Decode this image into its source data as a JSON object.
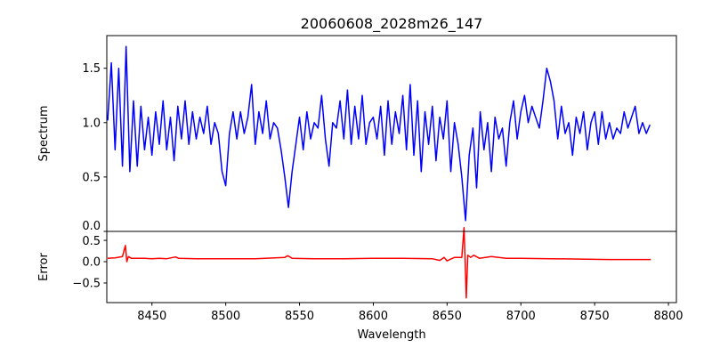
{
  "chart_data": [
    {
      "type": "line",
      "title": "20060608_2028m26_147",
      "xlabel": "",
      "ylabel": "Spectrum",
      "xlim": [
        8419.4,
        8805.4
      ],
      "ylim": [
        0,
        1.8
      ],
      "xticks": [
        8450,
        8500,
        8550,
        8600,
        8650,
        8700,
        8750,
        8800
      ],
      "yticks": [
        0.0,
        0.5,
        1.0,
        1.5
      ],
      "ytick_labels": [
        "0.0",
        "0.5",
        "1.0",
        "1.5"
      ],
      "grid": false,
      "color": "#0000ff",
      "series": [
        {
          "name": "Spectrum",
          "x_start": 8420,
          "x_step": 2.5,
          "values": [
            1.02,
            1.55,
            0.75,
            1.5,
            0.6,
            1.7,
            0.55,
            1.2,
            0.6,
            1.15,
            0.75,
            1.05,
            0.7,
            1.1,
            0.8,
            1.2,
            0.75,
            1.05,
            0.65,
            1.15,
            0.85,
            1.2,
            0.8,
            1.1,
            0.85,
            1.05,
            0.9,
            1.15,
            0.8,
            1.0,
            0.9,
            0.55,
            0.42,
            0.9,
            1.1,
            0.85,
            1.1,
            0.9,
            1.05,
            1.35,
            0.8,
            1.1,
            0.9,
            1.2,
            0.85,
            1.0,
            0.95,
            0.75,
            0.5,
            0.22,
            0.55,
            0.8,
            1.05,
            0.75,
            1.1,
            0.85,
            1.0,
            0.95,
            1.25,
            0.85,
            0.6,
            1.0,
            0.95,
            1.2,
            0.85,
            1.3,
            0.8,
            1.15,
            0.85,
            1.25,
            0.8,
            1.0,
            1.05,
            0.85,
            1.15,
            0.7,
            1.2,
            0.8,
            1.1,
            0.9,
            1.25,
            0.75,
            1.35,
            0.7,
            1.2,
            0.55,
            1.1,
            0.8,
            1.15,
            0.65,
            1.05,
            0.85,
            1.2,
            0.55,
            1.0,
            0.8,
            0.5,
            0.1,
            0.7,
            0.95,
            0.4,
            1.1,
            0.75,
            1.0,
            0.55,
            1.05,
            0.85,
            0.95,
            0.6,
            1.0,
            1.2,
            0.85,
            1.1,
            1.25,
            1.0,
            1.15,
            1.05,
            0.95,
            1.2,
            1.5,
            1.38,
            1.2,
            0.85,
            1.15,
            0.9,
            1.0,
            0.7,
            1.05,
            0.9,
            1.1,
            0.75,
            1.0,
            1.1,
            0.8,
            1.1,
            0.85,
            1.0,
            0.85,
            0.95,
            0.9,
            1.1,
            0.95,
            1.05,
            1.15,
            0.9,
            1.0,
            0.9,
            0.98
          ]
        }
      ]
    },
    {
      "type": "line",
      "title": "",
      "xlabel": "Wavelength",
      "ylabel": "Error",
      "xlim": [
        8419.4,
        8805.4
      ],
      "ylim": [
        -0.96,
        0.71
      ],
      "xticks": [
        8450,
        8500,
        8550,
        8600,
        8650,
        8700,
        8750,
        8800
      ],
      "xtick_labels": [
        "8450",
        "8500",
        "8550",
        "8600",
        "8650",
        "8700",
        "8750",
        "8800"
      ],
      "yticks": [
        0.5,
        0.0,
        -0.5
      ],
      "ytick_labels": [
        "0.5",
        "0.0",
        "−0.5"
      ],
      "grid": false,
      "color": "#ff0000",
      "series": [
        {
          "name": "Error",
          "x": [
            8420,
            8425,
            8430,
            8432,
            8433,
            8434,
            8436,
            8445,
            8450,
            8455,
            8460,
            8466,
            8468,
            8480,
            8500,
            8520,
            8540,
            8542,
            8545,
            8560,
            8580,
            8600,
            8620,
            8640,
            8645,
            8648,
            8650,
            8655,
            8660,
            8661.5,
            8663,
            8664,
            8666,
            8668,
            8672,
            8680,
            8690,
            8700,
            8720,
            8740,
            8760,
            8788
          ],
          "values": [
            0.08,
            0.09,
            0.12,
            0.38,
            0.0,
            0.12,
            0.08,
            0.08,
            0.07,
            0.08,
            0.07,
            0.11,
            0.08,
            0.07,
            0.07,
            0.07,
            0.1,
            0.14,
            0.08,
            0.07,
            0.07,
            0.08,
            0.08,
            0.07,
            0.03,
            0.1,
            0.02,
            0.1,
            0.1,
            0.8,
            -0.85,
            0.15,
            0.1,
            0.15,
            0.08,
            0.12,
            0.08,
            0.08,
            0.07,
            0.06,
            0.05,
            0.05
          ]
        }
      ]
    }
  ]
}
